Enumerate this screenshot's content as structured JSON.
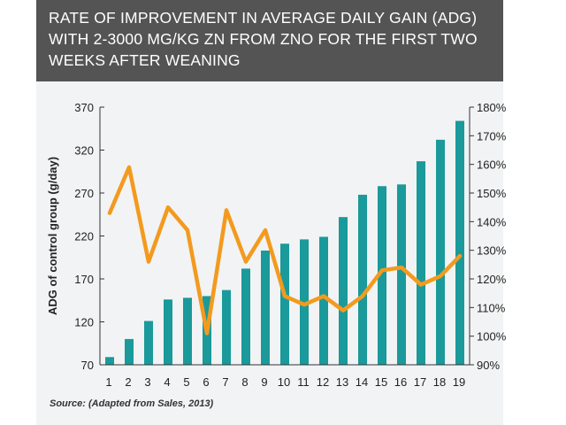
{
  "header": {
    "title": "RATE OF IMPROVEMENT IN AVERAGE DAILY GAIN (ADG) WITH 2-3000 MG/KG ZN FROM ZNO FOR THE FIRST TWO WEEKS AFTER WEANING",
    "background": "#545454"
  },
  "source": "Source: (Adapted from Sales, 2013)",
  "colors": {
    "bar": "#1a9a9a",
    "line": "#f39a1e",
    "background": "#f2f3f4"
  },
  "chart_data": {
    "type": "bar",
    "title": "RATE OF IMPROVEMENT IN AVERAGE DAILY GAIN (ADG) WITH 2-3000 MG/KG ZN FROM ZNO FOR THE FIRST TWO WEEKS AFTER WEANING",
    "categories": [
      "1",
      "2",
      "3",
      "4",
      "5",
      "6",
      "7",
      "8",
      "9",
      "10",
      "11",
      "12",
      "13",
      "14",
      "15",
      "16",
      "17",
      "18",
      "19"
    ],
    "ylabel": "ADG of control group (g/day)",
    "ylim": [
      70,
      370
    ],
    "yticks": [
      "370",
      "320",
      "270",
      "220",
      "170",
      "120",
      "70"
    ],
    "y2lim": [
      90,
      180
    ],
    "y2ticks": [
      "180%",
      "170%",
      "160%",
      "150%",
      "140%",
      "130%",
      "120%",
      "110%",
      "100%",
      "90%"
    ],
    "series": [
      {
        "type": "bar",
        "axis": "left",
        "values": [
          79,
          100,
          121,
          146,
          148,
          150,
          157,
          182,
          203,
          211,
          216,
          219,
          242,
          268,
          278,
          280,
          307,
          332,
          354
        ]
      },
      {
        "type": "line",
        "axis": "right",
        "values": [
          143,
          159,
          126,
          145,
          137,
          101,
          144,
          126,
          137,
          114,
          111,
          114,
          109,
          114,
          123,
          124,
          118,
          121,
          128
        ]
      }
    ],
    "grid": false,
    "legend": "none"
  }
}
